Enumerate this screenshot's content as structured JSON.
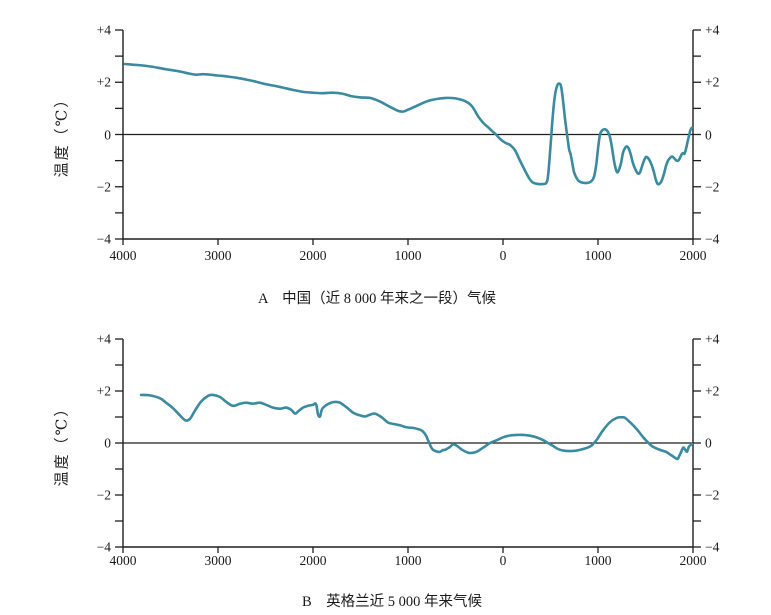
{
  "figure": {
    "background": "#ffffff",
    "axis_color": "#1f1f1f",
    "text_color": "#111111"
  },
  "chart_data": [
    {
      "type": "line",
      "caption": "A　中国（近 8 000 年来之一段）气候",
      "ylabel": "温度（℃）",
      "xlim": [
        -4000,
        2000
      ],
      "ylim": [
        -4,
        4
      ],
      "grid": false,
      "zero_line": true,
      "line_color": "#3a8aa0",
      "y_ticks": [
        {
          "v": 4,
          "label": "+4"
        },
        {
          "v": 2,
          "label": "+2"
        },
        {
          "v": 0,
          "label": "0"
        },
        {
          "v": -2,
          "label": "−2"
        },
        {
          "v": -4,
          "label": "−4"
        }
      ],
      "y_minor_tick_step": 1,
      "x_ticks": [
        {
          "v": -4000,
          "label": "4000"
        },
        {
          "v": -3000,
          "label": "3000"
        },
        {
          "v": -2000,
          "label": "2000"
        },
        {
          "v": -1000,
          "label": "1000"
        },
        {
          "v": 0,
          "label": "0"
        },
        {
          "v": 1000,
          "label": "1000"
        },
        {
          "v": 2000,
          "label": "2000"
        }
      ],
      "series": [
        {
          "name": "temperature-anomaly",
          "points": [
            [
              -3980,
              2.7
            ],
            [
              -3850,
              2.66
            ],
            [
              -3700,
              2.6
            ],
            [
              -3550,
              2.5
            ],
            [
              -3400,
              2.41
            ],
            [
              -3300,
              2.33
            ],
            [
              -3230,
              2.29
            ],
            [
              -3150,
              2.31
            ],
            [
              -3000,
              2.26
            ],
            [
              -2900,
              2.22
            ],
            [
              -2800,
              2.17
            ],
            [
              -2700,
              2.1
            ],
            [
              -2600,
              2.02
            ],
            [
              -2500,
              1.93
            ],
            [
              -2400,
              1.86
            ],
            [
              -2300,
              1.78
            ],
            [
              -2200,
              1.7
            ],
            [
              -2100,
              1.63
            ],
            [
              -2000,
              1.6
            ],
            [
              -1900,
              1.58
            ],
            [
              -1800,
              1.6
            ],
            [
              -1700,
              1.57
            ],
            [
              -1600,
              1.47
            ],
            [
              -1500,
              1.42
            ],
            [
              -1400,
              1.4
            ],
            [
              -1300,
              1.27
            ],
            [
              -1200,
              1.08
            ],
            [
              -1100,
              0.9
            ],
            [
              -1050,
              0.88
            ],
            [
              -1000,
              0.95
            ],
            [
              -900,
              1.11
            ],
            [
              -800,
              1.27
            ],
            [
              -700,
              1.36
            ],
            [
              -600,
              1.4
            ],
            [
              -500,
              1.38
            ],
            [
              -400,
              1.28
            ],
            [
              -326,
              1.08
            ],
            [
              -263,
              0.7
            ],
            [
              -210,
              0.45
            ],
            [
              -158,
              0.28
            ],
            [
              -105,
              0.1
            ],
            [
              -74,
              0.0
            ],
            [
              -21,
              -0.2
            ],
            [
              32,
              -0.33
            ],
            [
              74,
              -0.4
            ],
            [
              126,
              -0.6
            ],
            [
              179,
              -1.0
            ],
            [
              263,
              -1.6
            ],
            [
              316,
              -1.84
            ],
            [
              411,
              -1.9
            ],
            [
              463,
              -1.8
            ],
            [
              484,
              -1.2
            ],
            [
              505,
              -0.2
            ],
            [
              526,
              0.8
            ],
            [
              547,
              1.5
            ],
            [
              568,
              1.85
            ],
            [
              589,
              1.95
            ],
            [
              611,
              1.85
            ],
            [
              632,
              1.3
            ],
            [
              653,
              0.6
            ],
            [
              674,
              0.0
            ],
            [
              695,
              -0.55
            ],
            [
              710,
              -0.74
            ],
            [
              727,
              -1.05
            ],
            [
              748,
              -1.45
            ],
            [
              780,
              -1.7
            ],
            [
              810,
              -1.81
            ],
            [
              873,
              -1.86
            ],
            [
              926,
              -1.8
            ],
            [
              958,
              -1.62
            ],
            [
              980,
              -1.2
            ],
            [
              1000,
              -0.55
            ],
            [
              1021,
              0.0
            ],
            [
              1042,
              0.15
            ],
            [
              1074,
              0.2
            ],
            [
              1105,
              0.1
            ],
            [
              1126,
              -0.1
            ],
            [
              1147,
              -0.5
            ],
            [
              1168,
              -1.0
            ],
            [
              1189,
              -1.35
            ],
            [
              1205,
              -1.45
            ],
            [
              1221,
              -1.35
            ],
            [
              1242,
              -1.1
            ],
            [
              1263,
              -0.7
            ],
            [
              1284,
              -0.52
            ],
            [
              1305,
              -0.46
            ],
            [
              1326,
              -0.56
            ],
            [
              1347,
              -0.8
            ],
            [
              1368,
              -1.1
            ],
            [
              1389,
              -1.3
            ],
            [
              1410,
              -1.45
            ],
            [
              1426,
              -1.5
            ],
            [
              1442,
              -1.45
            ],
            [
              1463,
              -1.22
            ],
            [
              1484,
              -1.0
            ],
            [
              1505,
              -0.86
            ],
            [
              1526,
              -0.9
            ],
            [
              1547,
              -1.02
            ],
            [
              1568,
              -1.2
            ],
            [
              1589,
              -1.45
            ],
            [
              1610,
              -1.75
            ],
            [
              1631,
              -1.9
            ],
            [
              1652,
              -1.87
            ],
            [
              1673,
              -1.75
            ],
            [
              1695,
              -1.5
            ],
            [
              1716,
              -1.2
            ],
            [
              1737,
              -1.0
            ],
            [
              1758,
              -0.9
            ],
            [
              1779,
              -0.84
            ],
            [
              1800,
              -0.9
            ],
            [
              1826,
              -1.0
            ],
            [
              1847,
              -0.99
            ],
            [
              1863,
              -0.89
            ],
            [
              1884,
              -0.74
            ],
            [
              1900,
              -0.71
            ],
            [
              1910,
              -0.74
            ],
            [
              1926,
              -0.55
            ],
            [
              1942,
              -0.29
            ],
            [
              1958,
              -0.05
            ],
            [
              1974,
              0.18
            ],
            [
              1989,
              0.26
            ]
          ]
        }
      ]
    },
    {
      "type": "line",
      "caption": "B　英格兰近 5 000 年来气候",
      "ylabel": "温度（℃）",
      "xlim": [
        -4000,
        2000
      ],
      "ylim": [
        -4,
        4
      ],
      "grid": false,
      "zero_line": true,
      "line_color": "#3a8aa0",
      "y_ticks": [
        {
          "v": 4,
          "label": "+4"
        },
        {
          "v": 2,
          "label": "+2"
        },
        {
          "v": 0,
          "label": "0"
        },
        {
          "v": -2,
          "label": "−2"
        },
        {
          "v": -4,
          "label": "−4"
        }
      ],
      "y_minor_tick_step": 1,
      "x_ticks": [
        {
          "v": -4000,
          "label": "4000"
        },
        {
          "v": -3000,
          "label": "3000"
        },
        {
          "v": -2000,
          "label": "2000"
        },
        {
          "v": -1000,
          "label": "1000"
        },
        {
          "v": 0,
          "label": "0"
        },
        {
          "v": 1000,
          "label": "1000"
        },
        {
          "v": 2000,
          "label": "2000"
        }
      ],
      "series": [
        {
          "name": "temperature-anomaly",
          "points": [
            [
              -3810,
              1.85
            ],
            [
              -3716,
              1.83
            ],
            [
              -3610,
              1.72
            ],
            [
              -3547,
              1.55
            ],
            [
              -3474,
              1.34
            ],
            [
              -3400,
              1.06
            ],
            [
              -3342,
              0.87
            ],
            [
              -3295,
              0.93
            ],
            [
              -3242,
              1.25
            ],
            [
              -3179,
              1.59
            ],
            [
              -3105,
              1.81
            ],
            [
              -3053,
              1.85
            ],
            [
              -2979,
              1.77
            ],
            [
              -2916,
              1.59
            ],
            [
              -2842,
              1.43
            ],
            [
              -2768,
              1.51
            ],
            [
              -2705,
              1.55
            ],
            [
              -2632,
              1.51
            ],
            [
              -2558,
              1.55
            ],
            [
              -2495,
              1.47
            ],
            [
              -2421,
              1.36
            ],
            [
              -2347,
              1.32
            ],
            [
              -2284,
              1.36
            ],
            [
              -2232,
              1.28
            ],
            [
              -2189,
              1.13
            ],
            [
              -2158,
              1.21
            ],
            [
              -2105,
              1.36
            ],
            [
              -2053,
              1.43
            ],
            [
              -2000,
              1.47
            ],
            [
              -1968,
              1.5
            ],
            [
              -1947,
              1.1
            ],
            [
              -1926,
              1.02
            ],
            [
              -1905,
              1.3
            ],
            [
              -1863,
              1.45
            ],
            [
              -1810,
              1.55
            ],
            [
              -1768,
              1.58
            ],
            [
              -1716,
              1.55
            ],
            [
              -1642,
              1.36
            ],
            [
              -1579,
              1.17
            ],
            [
              -1505,
              1.06
            ],
            [
              -1453,
              1.02
            ],
            [
              -1400,
              1.09
            ],
            [
              -1347,
              1.13
            ],
            [
              -1274,
              0.98
            ],
            [
              -1211,
              0.79
            ],
            [
              -1137,
              0.72
            ],
            [
              -1084,
              0.68
            ],
            [
              -1011,
              0.6
            ],
            [
              -947,
              0.58
            ],
            [
              -874,
              0.51
            ],
            [
              -842,
              0.44
            ],
            [
              -810,
              0.28
            ],
            [
              -779,
              0.02
            ],
            [
              -747,
              -0.22
            ],
            [
              -716,
              -0.3
            ],
            [
              -684,
              -0.34
            ],
            [
              -663,
              -0.34
            ],
            [
              -631,
              -0.27
            ],
            [
              -610,
              -0.26
            ],
            [
              -558,
              -0.15
            ],
            [
              -526,
              -0.05
            ],
            [
              -484,
              -0.11
            ],
            [
              -431,
              -0.26
            ],
            [
              -368,
              -0.37
            ],
            [
              -326,
              -0.38
            ],
            [
              -274,
              -0.33
            ],
            [
              -210,
              -0.18
            ],
            [
              -137,
              0.0
            ],
            [
              -63,
              0.11
            ],
            [
              0,
              0.22
            ],
            [
              74,
              0.29
            ],
            [
              147,
              0.31
            ],
            [
              211,
              0.31
            ],
            [
              284,
              0.28
            ],
            [
              358,
              0.21
            ],
            [
              421,
              0.11
            ],
            [
              474,
              0.0
            ],
            [
              526,
              -0.11
            ],
            [
              579,
              -0.23
            ],
            [
              632,
              -0.29
            ],
            [
              705,
              -0.31
            ],
            [
              779,
              -0.29
            ],
            [
              842,
              -0.23
            ],
            [
              916,
              -0.14
            ],
            [
              958,
              0.0
            ],
            [
              990,
              0.14
            ],
            [
              1053,
              0.49
            ],
            [
              1126,
              0.8
            ],
            [
              1200,
              0.97
            ],
            [
              1253,
              0.99
            ],
            [
              1284,
              0.97
            ],
            [
              1337,
              0.8
            ],
            [
              1411,
              0.52
            ],
            [
              1474,
              0.23
            ],
            [
              1532,
              0.0
            ],
            [
              1568,
              -0.12
            ],
            [
              1642,
              -0.25
            ],
            [
              1716,
              -0.34
            ],
            [
              1768,
              -0.46
            ],
            [
              1832,
              -0.61
            ],
            [
              1853,
              -0.52
            ],
            [
              1884,
              -0.27
            ],
            [
              1900,
              -0.17
            ],
            [
              1916,
              -0.25
            ],
            [
              1937,
              -0.33
            ],
            [
              1958,
              -0.14
            ],
            [
              1989,
              -0.04
            ]
          ]
        }
      ]
    }
  ]
}
